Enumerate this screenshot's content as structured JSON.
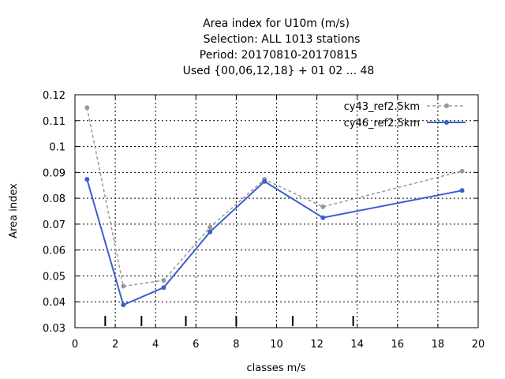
{
  "chart_data": {
    "type": "line",
    "title_lines": [
      "Area index  for U10m (m/s)",
      "Selection: ALL    1013 stations",
      "Period: 20170810-20170815",
      "Used {00,06,12,18} + 01 02 ... 48"
    ],
    "xlabel": "classes m/s",
    "ylabel": "Area index",
    "xlim": [
      0,
      20
    ],
    "ylim": [
      0.03,
      0.12
    ],
    "xticks": [
      0,
      2,
      4,
      6,
      8,
      10,
      12,
      14,
      16,
      18,
      20
    ],
    "xtick_labels": [
      "0",
      "2",
      "4",
      "6",
      "8",
      "10",
      "12",
      "14",
      "16",
      "18",
      "20"
    ],
    "yticks": [
      0.03,
      0.04,
      0.05,
      0.06,
      0.07,
      0.08,
      0.09,
      0.1,
      0.11,
      0.12
    ],
    "ytick_labels": [
      "0.03",
      "0.04",
      "0.05",
      "0.06",
      "0.07",
      "0.08",
      "0.09",
      "0.1",
      "0.11",
      "0.12"
    ],
    "grid": true,
    "legend_position": "top-right",
    "class_boundaries": [
      1.5,
      3.3,
      5.5,
      8.0,
      10.8,
      13.8
    ],
    "series": [
      {
        "name": "cy43_ref2.5km",
        "color": "#999999",
        "dashed": true,
        "x": [
          0.6,
          2.4,
          4.4,
          6.7,
          9.4,
          12.3,
          19.2
        ],
        "y": [
          0.115,
          0.046,
          0.0483,
          0.0688,
          0.0873,
          0.0767,
          0.0905
        ]
      },
      {
        "name": "cy46_ref2.5km",
        "color": "#3a5fcd",
        "dashed": false,
        "x": [
          0.6,
          2.4,
          4.4,
          6.7,
          9.4,
          12.3,
          19.2
        ],
        "y": [
          0.0873,
          0.0388,
          0.0455,
          0.067,
          0.0865,
          0.0725,
          0.083
        ]
      }
    ]
  }
}
